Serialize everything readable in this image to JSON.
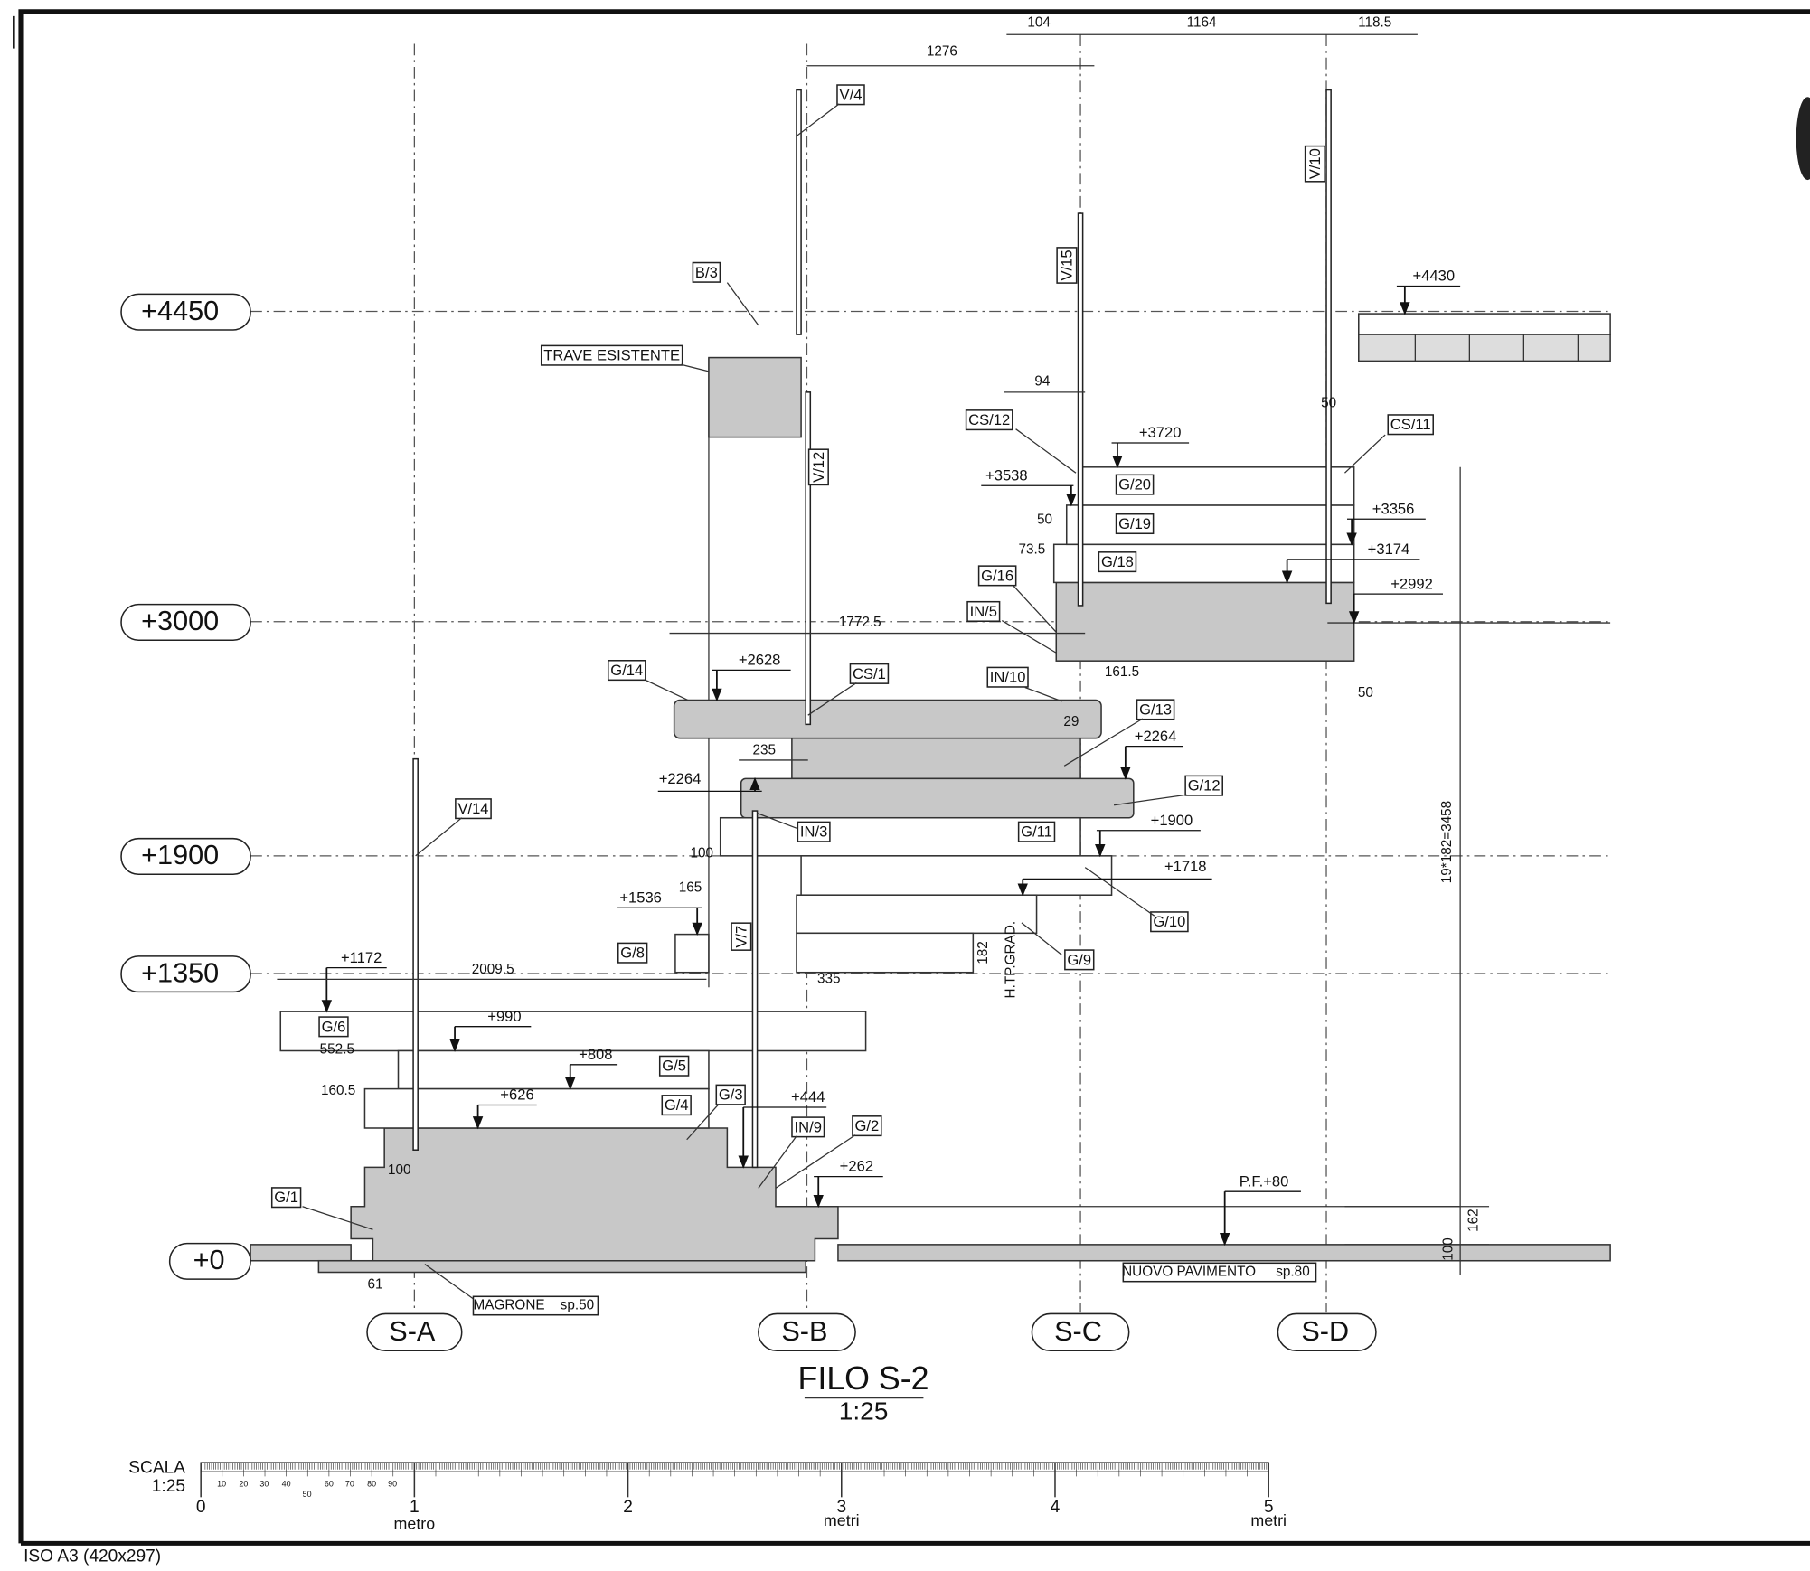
{
  "levels": [
    "+4450",
    "+3000",
    "+1900",
    "+1350",
    "+0"
  ],
  "axes": [
    "S-A",
    "S-B",
    "S-C",
    "S-D"
  ],
  "tags": [
    "V/4",
    "B/3",
    "TRAVE ESISTENTE",
    "V/12",
    "V/15",
    "V/10",
    "CS/12",
    "CS/11",
    "G/20",
    "G/19",
    "G/18",
    "G/16",
    "IN/5",
    "G/14",
    "CS/1",
    "IN/10",
    "G/13",
    "G/12",
    "IN/3",
    "G/11",
    "V/14",
    "G/10",
    "V/7",
    "G/8",
    "G/9",
    "G/6",
    "G/5",
    "G/4",
    "G/3",
    "IN/9",
    "G/2",
    "G/1"
  ],
  "elevations": [
    "+4430",
    "+3720",
    "+3538",
    "+3356",
    "+3174",
    "+2992",
    "+2628",
    "+2264",
    "+2264",
    "+1900",
    "+1718",
    "+1536",
    "+1172",
    "+990",
    "+808",
    "+626",
    "+444",
    "+262",
    "P.F.+80"
  ],
  "dimensions": [
    "104",
    "1164",
    "118.5",
    "1276",
    "94",
    "50",
    "50",
    "73.5",
    "1772.5",
    "161.5",
    "50",
    "29",
    "235",
    "100",
    "165",
    "182",
    "H.TP.GRAD.",
    "335",
    "2009.5",
    "552.5",
    "160.5",
    "100",
    "61",
    "19*182=3458",
    "162",
    "100"
  ],
  "notes": {
    "magrone": "MAGRONE",
    "magrone_thickness": "sp.50",
    "floor": "NUOVO PAVIMENTO",
    "floor_thickness": "sp.80"
  },
  "title": "FILO S-2",
  "scale": "1:25",
  "scale_bar": {
    "label": "SCALA",
    "ratio": "1:25",
    "major": [
      "0",
      "1",
      "2",
      "3",
      "4",
      "5"
    ],
    "minor": [
      "10",
      "20",
      "30",
      "40",
      "50",
      "60",
      "70",
      "80",
      "90"
    ],
    "units": [
      "metro",
      "metri",
      "metri"
    ]
  },
  "sheet": "ISO A3 (420x297)"
}
